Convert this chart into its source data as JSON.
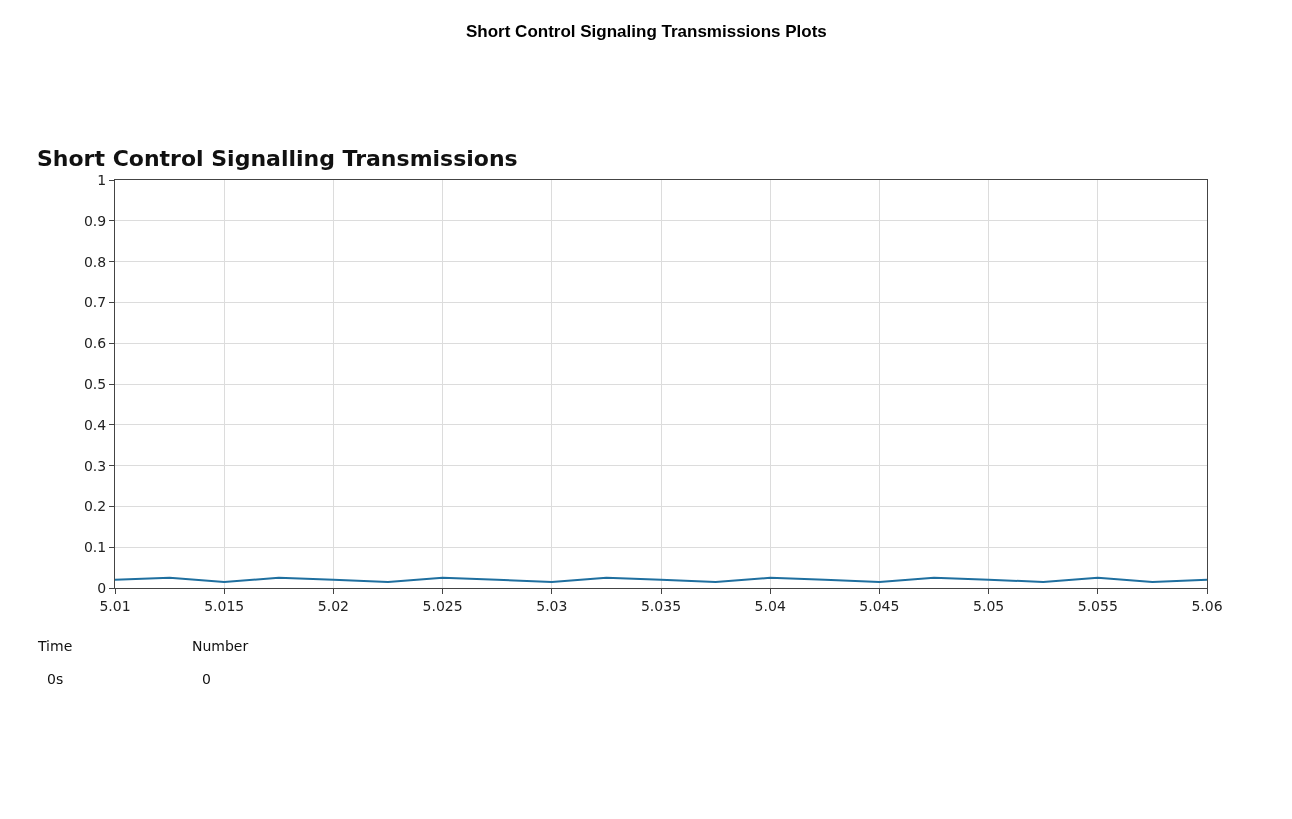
{
  "chart_data": {
    "type": "line",
    "title": "Short Control Signaling Transmissions Plots",
    "subtitle": "Short Control Signalling Transmissions",
    "x": [
      5.01,
      5.0125,
      5.015,
      5.0175,
      5.02,
      5.0225,
      5.025,
      5.0275,
      5.03,
      5.0325,
      5.035,
      5.0375,
      5.04,
      5.0425,
      5.045,
      5.0475,
      5.05,
      5.0525,
      5.055,
      5.0575,
      5.06
    ],
    "series": [
      {
        "color": "#1f6f9f",
        "values": [
          0.02,
          0.025,
          0.015,
          0.025,
          0.02,
          0.015,
          0.025,
          0.02,
          0.015,
          0.025,
          0.02,
          0.015,
          0.025,
          0.02,
          0.015,
          0.025,
          0.02,
          0.015,
          0.025,
          0.015,
          0.02
        ]
      }
    ],
    "xlim": [
      5.01,
      5.06
    ],
    "xticks": [
      5.01,
      5.015,
      5.02,
      5.025,
      5.03,
      5.035,
      5.04,
      5.045,
      5.05,
      5.055,
      5.06
    ],
    "ylim": [
      0,
      1
    ],
    "yticks": [
      0,
      0.1,
      0.2,
      0.3,
      0.4,
      0.5,
      0.6,
      0.7,
      0.8,
      0.9,
      1
    ],
    "grid": true,
    "marker": "none",
    "line_style": "solid",
    "annotations": [
      "Time",
      "0s",
      "Number",
      "0"
    ]
  }
}
